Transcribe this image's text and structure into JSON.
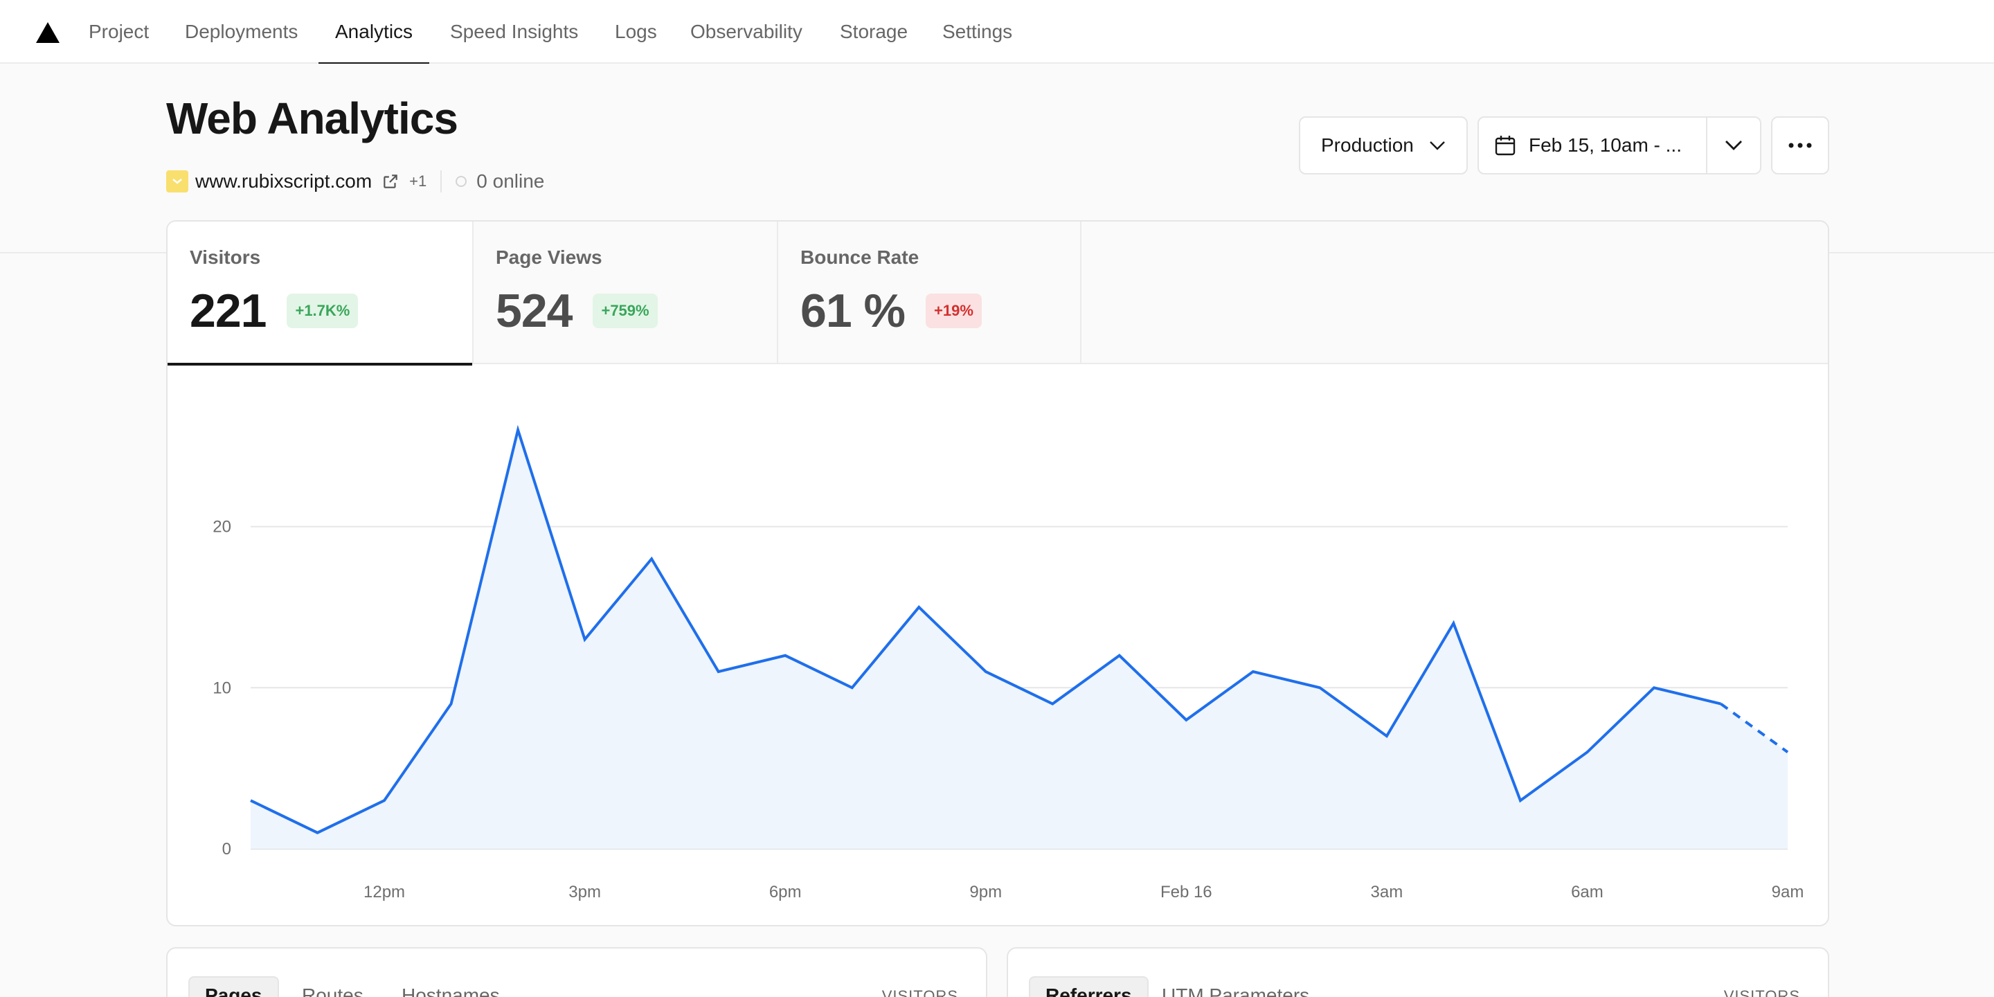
{
  "nav": {
    "logo_icon": "triangle-logo-icon",
    "items": [
      "Project",
      "Deployments",
      "Analytics",
      "Speed Insights",
      "Logs",
      "Observability",
      "Storage",
      "Settings"
    ],
    "active_index": 2
  },
  "header": {
    "title": "Web Analytics",
    "site_url": "www.rubixscript.com",
    "extra_domains": "+1",
    "online": "0 online"
  },
  "controls": {
    "environment": "Production",
    "date_range": "Feb 15, 10am - ..."
  },
  "metrics": [
    {
      "label": "Visitors",
      "value": "221",
      "change": "+1.7K%",
      "trend": "up"
    },
    {
      "label": "Page Views",
      "value": "524",
      "change": "+759%",
      "trend": "up"
    },
    {
      "label": "Bounce Rate",
      "value": "61 %",
      "change": "+19%",
      "trend": "down"
    }
  ],
  "chart_data": {
    "type": "area",
    "series": [
      {
        "values": [
          3,
          1,
          3,
          9,
          26,
          13,
          18,
          11,
          12,
          10,
          15,
          11,
          9,
          12,
          8,
          11,
          10,
          7,
          14,
          3,
          6,
          10,
          9,
          6
        ]
      }
    ],
    "x_ticks": [
      "12pm",
      "3pm",
      "6pm",
      "9pm",
      "Feb 16",
      "3am",
      "6am",
      "9am"
    ],
    "y_ticks": [
      "0",
      "10",
      "20"
    ],
    "ylim": [
      0,
      26
    ],
    "partial_last_segment": true,
    "grid": true,
    "colors": {
      "line": "#1f6feb",
      "fill": "#eef5fd",
      "grid": "#e6e6e6"
    }
  },
  "bottom_left": {
    "tabs": [
      "Pages",
      "Routes",
      "Hostnames"
    ],
    "column": "VISITORS"
  },
  "bottom_right": {
    "tabs": [
      "Referrers",
      "UTM Parameters"
    ],
    "column": "VISITORS"
  }
}
